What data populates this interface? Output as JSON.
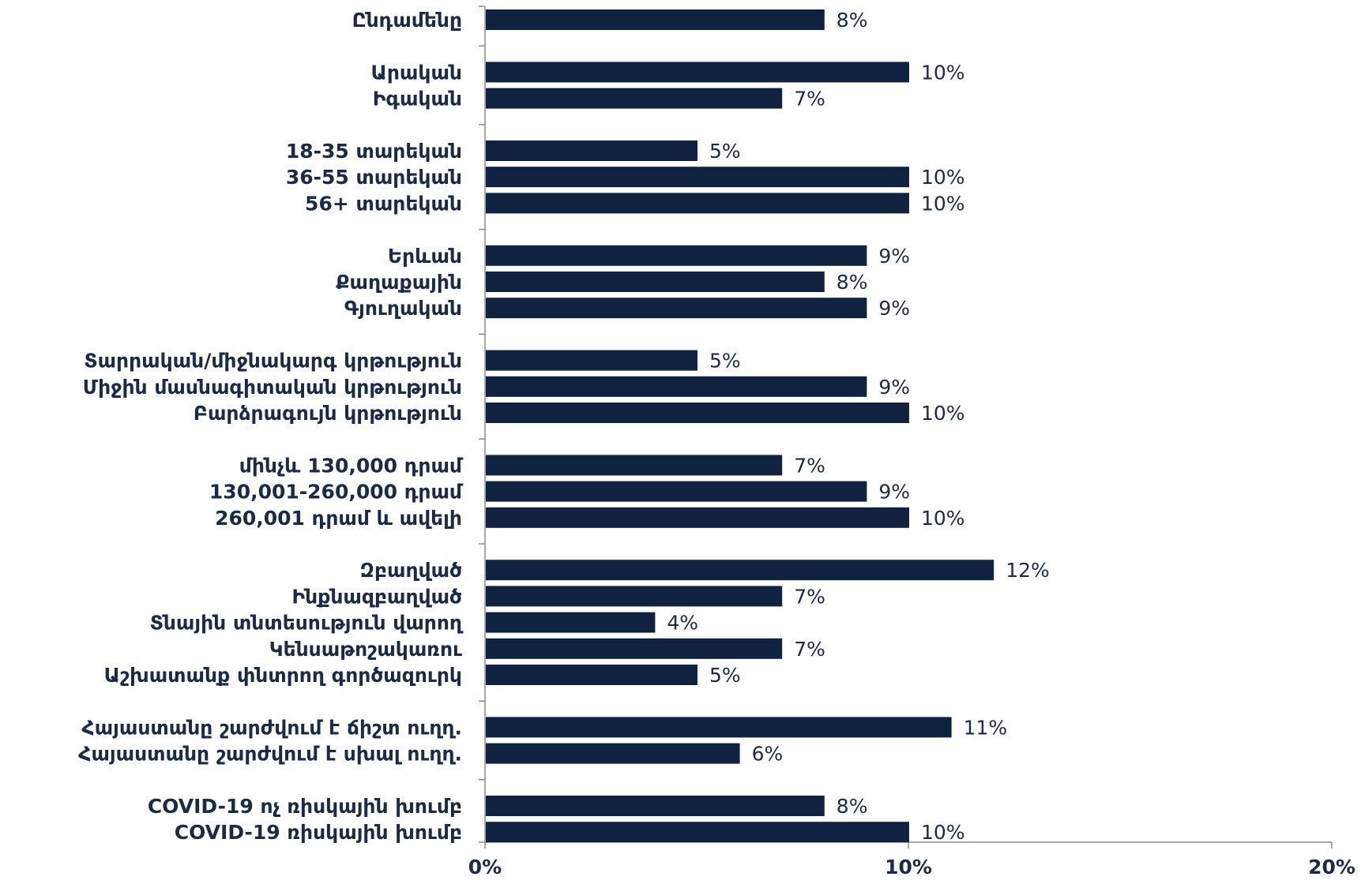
{
  "chart_data": {
    "type": "bar",
    "orientation": "horizontal",
    "bar_color": "#0f2240",
    "text_color": "#1b2a47",
    "axis_color": "#8c8c8c",
    "xlim": [
      0,
      20
    ],
    "x_ticks": [
      0,
      10,
      20
    ],
    "x_tick_labels": [
      "0%",
      "10%",
      "20%"
    ],
    "grid": false,
    "groups": [
      {
        "categories": [
          "Ընդամենը"
        ],
        "values": [
          8
        ]
      },
      {
        "categories": [
          "Արական",
          "Իգական"
        ],
        "values": [
          10,
          7
        ]
      },
      {
        "categories": [
          "18-35 տարեկան",
          "36-55 տարեկան",
          "56+ տարեկան"
        ],
        "values": [
          5,
          10,
          10
        ]
      },
      {
        "categories": [
          "Երևան",
          "Քաղաքային",
          "Գյուղական"
        ],
        "values": [
          9,
          8,
          9
        ]
      },
      {
        "categories": [
          "Տարրական/միջնակարգ կրթություն",
          "Միջին մասնագիտական կրթություն",
          "Բարձրագույն կրթություն"
        ],
        "values": [
          5,
          9,
          10
        ]
      },
      {
        "categories": [
          "մինչև 130,000 դրամ",
          "130,001-260,000 դրամ",
          "260,001 դրամ և ավելի"
        ],
        "values": [
          7,
          9,
          10
        ]
      },
      {
        "categories": [
          "Զբաղված",
          "Ինքնազբաղված",
          "Տնային տնտեսություն վարող",
          "Կենսաթոշակառու",
          "Աշխատանք փնտրող գործազուրկ"
        ],
        "values": [
          12,
          7,
          4,
          7,
          5
        ]
      },
      {
        "categories": [
          "Հայաստանը շարժվում է ճիշտ ուղղ.",
          "Հայաստանը շարժվում է սխալ ուղղ."
        ],
        "values": [
          11,
          6
        ]
      },
      {
        "categories": [
          "COVID-19 ոչ ռիսկային խումբ",
          "COVID-19 ռիսկային խումբ"
        ],
        "values": [
          8,
          10
        ]
      }
    ],
    "value_labels": [
      [
        "8%"
      ],
      [
        "10%",
        "7%"
      ],
      [
        "5%",
        "10%",
        "10%"
      ],
      [
        "9%",
        "8%",
        "9%"
      ],
      [
        "5%",
        "9%",
        "10%"
      ],
      [
        "7%",
        "9%",
        "10%"
      ],
      [
        "12%",
        "7%",
        "4%",
        "7%",
        "5%"
      ],
      [
        "11%",
        "6%"
      ],
      [
        "8%",
        "10%"
      ]
    ]
  }
}
